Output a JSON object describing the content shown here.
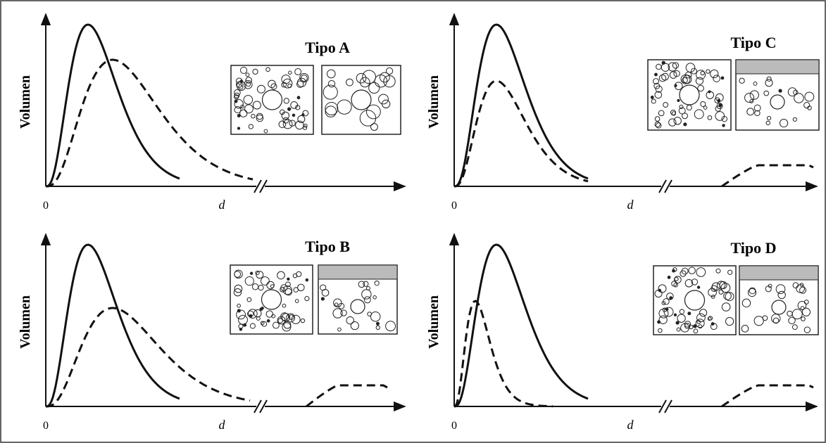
{
  "panels": [
    {
      "title": "Tipo A",
      "y_label": "Volumen",
      "x_label": "d",
      "origin_label": "0"
    },
    {
      "title": "Tipo C",
      "y_label": "Volumen",
      "x_label": "d",
      "origin_label": "0"
    },
    {
      "title": "Tipo B",
      "y_label": "Volumen",
      "x_label": "d",
      "origin_label": "0"
    },
    {
      "title": "Tipo D",
      "y_label": "Volumen",
      "x_label": "d",
      "origin_label": "0"
    }
  ]
}
